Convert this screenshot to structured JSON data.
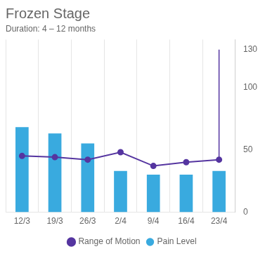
{
  "chart_data": {
    "type": "bar",
    "title": "Frozen Stage",
    "subtitle": "Duration: 4 – 12 months",
    "categories": [
      "12/3",
      "19/3",
      "26/3",
      "2/4",
      "9/4",
      "16/4",
      "23/4"
    ],
    "series": [
      {
        "name": "Range of Motion",
        "type": "line",
        "color": "#5535a0",
        "marker": "circle",
        "values": [
          45,
          44,
          42,
          48,
          37,
          40,
          42
        ]
      },
      {
        "name": "Pain Level",
        "type": "bar",
        "color": "#39aadf",
        "values": [
          68,
          63,
          55,
          33,
          30,
          30,
          33
        ]
      }
    ],
    "vertical_line": {
      "category": "23/4",
      "series": "Range of Motion",
      "to": 130,
      "color": "#5535a0"
    },
    "ylim": [
      0,
      138
    ],
    "yticks": [
      0,
      50,
      100,
      130
    ],
    "grid": "x",
    "legend": "bottom"
  }
}
